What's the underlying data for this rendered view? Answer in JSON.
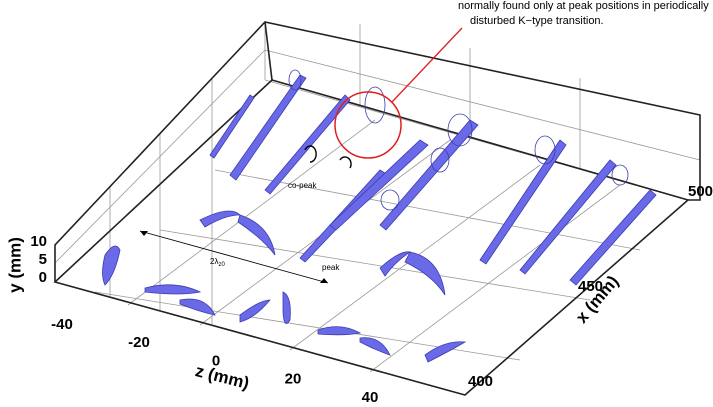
{
  "chart_data": {
    "type": "isosurface3d",
    "annotation": [
      "normally found only at peak positions in periodically",
      "disturbed K−type transition."
    ],
    "labels": {
      "co_peak": "co-peak",
      "peak": "peak",
      "wavelength": "2λ",
      "wavelength_sub": "z0"
    },
    "color": "#6a6ae8",
    "y_axis": {
      "label": "y (mm)",
      "ticks": [
        0,
        5,
        10
      ]
    },
    "z_axis": {
      "label": "z (mm)",
      "ticks": [
        -40,
        -20,
        0,
        20,
        40
      ]
    },
    "x_axis": {
      "label": "x (mm)",
      "ticks": [
        400,
        450,
        500
      ]
    }
  }
}
